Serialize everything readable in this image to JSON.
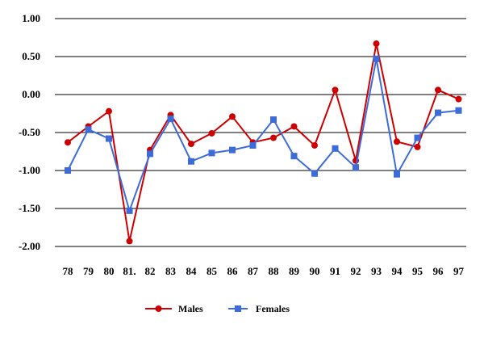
{
  "chart_data": {
    "type": "line",
    "categories": [
      "78",
      "79",
      "80",
      "81.",
      "82",
      "83",
      "84",
      "85",
      "86",
      "87",
      "88",
      "89",
      "90",
      "91",
      "92",
      "93",
      "94",
      "95",
      "96",
      "97"
    ],
    "ylim": [
      -2.0,
      1.0
    ],
    "yticks": [
      "1.00",
      "0.50",
      "0.00",
      "-0.50",
      "-1.00",
      "-1.50",
      "-2.00"
    ],
    "grid": true,
    "legend_position": "bottom",
    "series": [
      {
        "name": "Males",
        "color": "#cc0000",
        "marker": "circle",
        "values": [
          -0.63,
          -0.42,
          -0.22,
          -1.93,
          -0.73,
          -0.27,
          -0.65,
          -0.51,
          -0.29,
          -0.63,
          -0.57,
          -0.42,
          -0.67,
          0.06,
          -0.87,
          0.67,
          -0.62,
          -0.69,
          0.06,
          -0.06
        ]
      },
      {
        "name": "Females",
        "color": "#3d6bd9",
        "marker": "square",
        "values": [
          -1.0,
          -0.46,
          -0.58,
          -1.53,
          -0.78,
          -0.32,
          -0.88,
          -0.77,
          -0.73,
          -0.67,
          -0.33,
          -0.81,
          -1.04,
          -0.71,
          -0.96,
          0.47,
          -1.05,
          -0.57,
          -0.24,
          -0.21
        ]
      }
    ]
  }
}
